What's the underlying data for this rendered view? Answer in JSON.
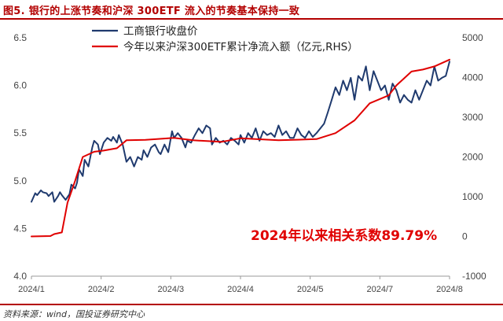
{
  "title": "图5. 银行的上涨节奏和沪深 300ETF 流入的节奏基本保持一致",
  "source": "资料来源：wind，国投证券研究中心",
  "chart_data": {
    "type": "line",
    "x_ticks": [
      "2024/1",
      "2024/2",
      "2024/3",
      "2024/4",
      "2024/5",
      "2024/7",
      "2024/8"
    ],
    "y_left": {
      "ticks": [
        "4.0",
        "4.5",
        "5.0",
        "5.5",
        "6.0",
        "6.5"
      ],
      "ylim": [
        4.0,
        6.5
      ]
    },
    "y_right": {
      "ticks": [
        "-1000",
        "0",
        "1000",
        "2000",
        "3000",
        "4000",
        "5000"
      ],
      "ylim": [
        -1000,
        5000
      ]
    },
    "annotation": "2024年以来相关系数89.79%",
    "series": [
      {
        "name": "工商银行收盘价",
        "axis": "left",
        "color": "#1f3a6e",
        "t": [
          0,
          2,
          3,
          5,
          6,
          8,
          9,
          11,
          12,
          14,
          15,
          16,
          18,
          20,
          21,
          23,
          24,
          25,
          27,
          28,
          30,
          32,
          33,
          35,
          36,
          38,
          40,
          42,
          43,
          45,
          46,
          48,
          50,
          52,
          54,
          56,
          58,
          59,
          61,
          63,
          65,
          67,
          68,
          70,
          72,
          74,
          75,
          77,
          79,
          81,
          82,
          84,
          86,
          88,
          90,
          92,
          94,
          95,
          97,
          99,
          101,
          103,
          105,
          107,
          109,
          110,
          112,
          114,
          116,
          118,
          120,
          122,
          124,
          126,
          128,
          130,
          132,
          134,
          136,
          138,
          140,
          142,
          144,
          146,
          148,
          150,
          152,
          154,
          156,
          158,
          160,
          162,
          164,
          166,
          168,
          170,
          172,
          174,
          176,
          178,
          180,
          182,
          184,
          186,
          188,
          190,
          192,
          194,
          196,
          198,
          200,
          202,
          204,
          206,
          208,
          210,
          212,
          214,
          216,
          218,
          220
        ],
        "values": [
          4.78,
          4.87,
          4.85,
          4.9,
          4.88,
          4.87,
          4.84,
          4.88,
          4.78,
          4.84,
          4.88,
          4.85,
          4.8,
          4.86,
          4.96,
          4.92,
          4.98,
          5.12,
          5.05,
          5.22,
          5.15,
          5.35,
          5.42,
          5.38,
          5.28,
          5.4,
          5.45,
          5.42,
          5.46,
          5.4,
          5.48,
          5.38,
          5.2,
          5.25,
          5.15,
          5.25,
          5.22,
          5.32,
          5.25,
          5.35,
          5.38,
          5.3,
          5.28,
          5.38,
          5.3,
          5.52,
          5.45,
          5.5,
          5.45,
          5.35,
          5.42,
          5.4,
          5.48,
          5.55,
          5.5,
          5.58,
          5.55,
          5.38,
          5.45,
          5.4,
          5.42,
          5.38,
          5.45,
          5.42,
          5.38,
          5.48,
          5.4,
          5.5,
          5.45,
          5.55,
          5.42,
          5.52,
          5.48,
          5.5,
          5.46,
          5.58,
          5.48,
          5.52,
          5.45,
          5.45,
          5.55,
          5.48,
          5.45,
          5.52,
          5.46,
          5.5,
          5.55,
          5.6,
          5.72,
          5.85,
          5.98,
          5.9,
          6.05,
          5.95,
          6.08,
          5.85,
          6.1,
          6.05,
          6.2,
          5.95,
          6.15,
          6.05,
          5.95,
          6.0,
          5.85,
          6.02,
          5.95,
          5.82,
          5.9,
          5.85,
          5.82,
          5.95,
          5.85,
          5.95,
          6.05,
          6.0,
          6.2,
          6.05,
          6.08,
          6.1,
          6.25
        ]
      },
      {
        "name": "今年以来沪深300ETF累计净流入额（亿元,RHS）",
        "axis": "right",
        "color": "#e00000",
        "t": [
          0,
          10,
          12,
          16,
          19,
          23,
          27,
          33,
          38,
          45,
          50,
          60,
          75,
          85,
          100,
          110,
          130,
          150,
          160,
          170,
          178,
          188,
          192,
          200,
          206,
          212,
          220
        ],
        "values": [
          0,
          10,
          60,
          100,
          850,
          1400,
          2000,
          2130,
          2160,
          2220,
          2420,
          2430,
          2480,
          2420,
          2380,
          2470,
          2420,
          2450,
          2600,
          2920,
          3350,
          3550,
          3800,
          4150,
          4200,
          4280,
          4450
        ]
      }
    ]
  }
}
